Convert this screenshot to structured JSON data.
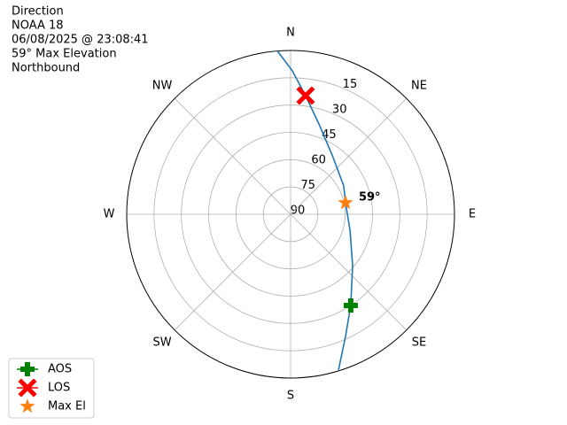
{
  "chart_data": {
    "type": "polar",
    "title_lines": [
      "Direction",
      "NOAA 18",
      "06/08/2025 @ 23:08:41",
      "59° Max Elevation",
      "Northbound"
    ],
    "theta_direction": "clockwise",
    "theta_zero": "N",
    "thetaticks": [
      {
        "value": 0,
        "label": "N"
      },
      {
        "value": 45,
        "label": "NE"
      },
      {
        "value": 90,
        "label": "E"
      },
      {
        "value": 135,
        "label": "SE"
      },
      {
        "value": 180,
        "label": "S"
      },
      {
        "value": 225,
        "label": "SW"
      },
      {
        "value": 270,
        "label": "W"
      },
      {
        "value": 315,
        "label": "NW"
      }
    ],
    "rlim": [
      90,
      0
    ],
    "rticks": [
      15,
      30,
      45,
      60,
      75,
      90
    ],
    "grid": true,
    "legend": "lower left",
    "series": [
      {
        "color": "#1f77b4",
        "marker": "line",
        "theta": [
          355.4,
          0.7,
          7.2,
          17.4,
          35.0,
          61.9,
          78.2,
          105.0,
          129.6,
          146.6,
          155.8,
          162.9
        ],
        "r": [
          0,
          11.2,
          24.3,
          38.0,
          50.2,
          56.9,
          59.2,
          56.2,
          45.8,
          30.0,
          16.4,
          0.5
        ]
      },
      {
        "name": "AOS",
        "color": "#008000",
        "marker": "plus",
        "theta": [
          146.6
        ],
        "r": [
          30.0
        ]
      },
      {
        "name": "LOS",
        "color": "#ff0000",
        "marker": "x",
        "theta": [
          7.2
        ],
        "r": [
          24.3
        ]
      },
      {
        "name": "Max El",
        "color": "#ff7f0e",
        "marker": "star",
        "theta": [
          78.2
        ],
        "r": [
          59.2
        ],
        "value_labels": [
          "59°"
        ]
      }
    ]
  }
}
